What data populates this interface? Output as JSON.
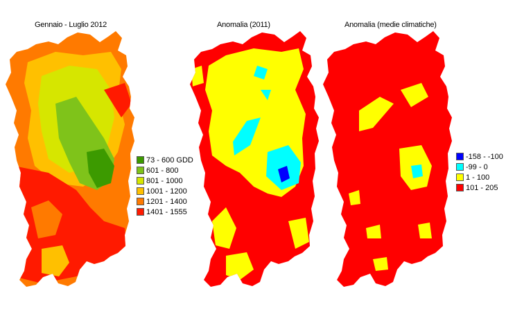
{
  "maps": [
    {
      "title": "Gennaio - Luglio 2012",
      "legend": [
        {
          "label": "73 - 600 GDD",
          "color": "#3c9a00"
        },
        {
          "label": "601 - 800",
          "color": "#7fc31a"
        },
        {
          "label": "801 - 1000",
          "color": "#d6e600"
        },
        {
          "label": "1001 - 1200",
          "color": "#ffc000"
        },
        {
          "label": "1201 - 1400",
          "color": "#ff7a00"
        },
        {
          "label": "1401 - 1555",
          "color": "#ff1a00"
        }
      ]
    },
    {
      "title": "Anomalia (2011)",
      "legend": []
    },
    {
      "title": "Anomalia (medie climatiche)",
      "legend": [
        {
          "label": "-158 - -100",
          "color": "#0000ff"
        },
        {
          "label": "-99 - 0",
          "color": "#00ffff"
        },
        {
          "label": "1 - 100",
          "color": "#ffff00"
        },
        {
          "label": "101 - 205",
          "color": "#ff0000"
        }
      ]
    }
  ]
}
